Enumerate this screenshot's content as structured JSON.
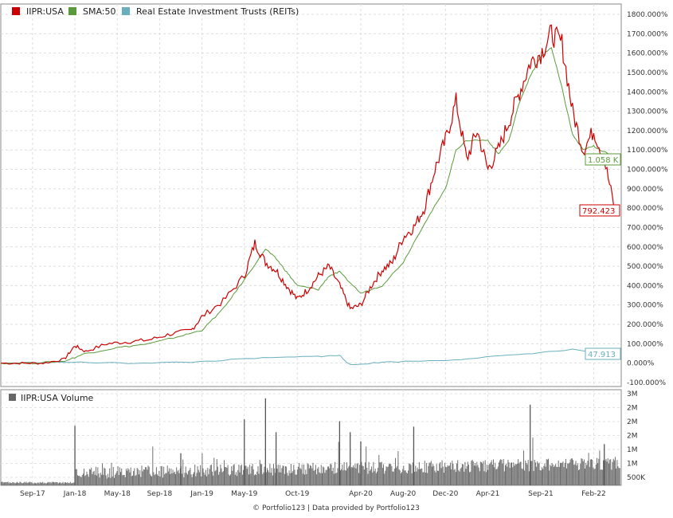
{
  "chart_data": {
    "type": "line",
    "legend": [
      {
        "name": "IIPR:USA",
        "color": "#cc0000"
      },
      {
        "name": "SMA:50",
        "color": "#5a9a3a"
      },
      {
        "name": "Real Estate Investment Trusts (REITs)",
        "color": "#6aafbf"
      }
    ],
    "price_axis": {
      "ticks": [
        "1800.000%",
        "1700.000%",
        "1600.000%",
        "1500.000%",
        "1400.000%",
        "1300.000%",
        "1200.000%",
        "1100.000%",
        "1000.000%",
        "900.000%",
        "800.000%",
        "700.000%",
        "600.000%",
        "500.000%",
        "400.000%",
        "300.000%",
        "200.000%",
        "100.000%",
        "0.000%",
        "-100.000%"
      ],
      "ylim": [
        -100,
        1800
      ]
    },
    "end_labels": {
      "iipr": "792.423",
      "sma": "1.058 K",
      "reit": "47.913"
    },
    "x_ticks": [
      "Sep-17",
      "Jan-18",
      "May-18",
      "Sep-18",
      "Jan-19",
      "May-19",
      "Oct-19",
      "Apr-20",
      "Aug-20",
      "Dec-20",
      "Apr-21",
      "Sep-21",
      "Feb-22"
    ],
    "x_tick_dates": [
      "2017-09",
      "2018-01",
      "2018-05",
      "2018-09",
      "2019-01",
      "2019-05",
      "2019-10",
      "2020-04",
      "2020-08",
      "2020-12",
      "2021-04",
      "2021-09",
      "2022-02"
    ],
    "series": [
      {
        "name": "IIPR:USA",
        "dates": [
          "2017-06",
          "2017-08",
          "2017-10",
          "2017-12",
          "2018-01",
          "2018-02",
          "2018-04",
          "2018-06",
          "2018-08",
          "2018-10",
          "2018-12",
          "2019-01",
          "2019-03",
          "2019-05",
          "2019-06",
          "2019-07",
          "2019-08",
          "2019-09",
          "2019-10",
          "2019-11",
          "2019-12",
          "2020-01",
          "2020-02",
          "2020-03",
          "2020-04",
          "2020-05",
          "2020-06",
          "2020-07",
          "2020-08",
          "2020-09",
          "2020-10",
          "2020-11",
          "2020-12",
          "2021-01",
          "2021-02",
          "2021-03",
          "2021-04",
          "2021-05",
          "2021-06",
          "2021-07",
          "2021-08",
          "2021-09",
          "2021-10",
          "2021-11",
          "2021-12",
          "2022-01",
          "2022-02",
          "2022-03",
          "2022-04"
        ],
        "values": [
          0,
          0,
          0,
          20,
          90,
          60,
          100,
          110,
          120,
          150,
          170,
          240,
          320,
          450,
          620,
          520,
          480,
          400,
          330,
          380,
          450,
          500,
          400,
          280,
          300,
          400,
          480,
          520,
          650,
          700,
          800,
          1000,
          1150,
          1350,
          1050,
          1200,
          1000,
          1100,
          1250,
          1400,
          1550,
          1600,
          1700,
          1650,
          1300,
          1100,
          1200,
          1050,
          792
        ]
      },
      {
        "name": "SMA:50",
        "dates": [
          "2017-06",
          "2017-09",
          "2017-12",
          "2018-02",
          "2018-05",
          "2018-08",
          "2018-11",
          "2019-01",
          "2019-03",
          "2019-05",
          "2019-07",
          "2019-08",
          "2019-09",
          "2019-10",
          "2019-12",
          "2020-01",
          "2020-02",
          "2020-04",
          "2020-06",
          "2020-08",
          "2020-10",
          "2020-12",
          "2021-01",
          "2021-02",
          "2021-04",
          "2021-05",
          "2021-06",
          "2021-07",
          "2021-08",
          "2021-09",
          "2021-10",
          "2021-11",
          "2021-12",
          "2022-01",
          "2022-02",
          "2022-03",
          "2022-04"
        ],
        "values": [
          0,
          0,
          10,
          50,
          80,
          100,
          140,
          170,
          280,
          430,
          590,
          540,
          470,
          400,
          380,
          450,
          470,
          360,
          400,
          520,
          720,
          900,
          1100,
          1150,
          1150,
          1080,
          1150,
          1350,
          1480,
          1580,
          1630,
          1420,
          1180,
          1100,
          1120,
          1090,
          1058
        ]
      },
      {
        "name": "Real Estate Investment Trusts (REITs)",
        "dates": [
          "2017-06",
          "2017-12",
          "2018-06",
          "2018-12",
          "2019-06",
          "2019-12",
          "2020-02",
          "2020-03",
          "2020-06",
          "2020-12",
          "2021-06",
          "2021-12",
          "2022-04"
        ],
        "values": [
          0,
          5,
          0,
          5,
          25,
          35,
          40,
          -10,
          5,
          15,
          40,
          70,
          48
        ]
      }
    ],
    "volume_axis": {
      "label": "IIPR:USA Volume",
      "color": "#666666",
      "ticks": [
        "3M",
        "2M",
        "2M",
        "2M",
        "1M",
        "1M",
        "500K"
      ]
    },
    "volume_spikes": [
      {
        "date": "2018-01",
        "level": 0.65
      },
      {
        "date": "2018-11",
        "level": 0.35
      },
      {
        "date": "2019-05",
        "level": 0.72
      },
      {
        "date": "2019-07",
        "level": 0.95
      },
      {
        "date": "2019-08",
        "level": 0.58
      },
      {
        "date": "2020-02",
        "level": 0.7
      },
      {
        "date": "2020-03",
        "level": 0.58
      },
      {
        "date": "2020-04",
        "level": 0.48
      },
      {
        "date": "2020-09",
        "level": 0.64
      },
      {
        "date": "2021-08",
        "level": 0.88
      },
      {
        "date": "2022-03",
        "level": 0.45
      }
    ]
  },
  "footer": "© Portfolio123 | Data provided by Portfolio123"
}
